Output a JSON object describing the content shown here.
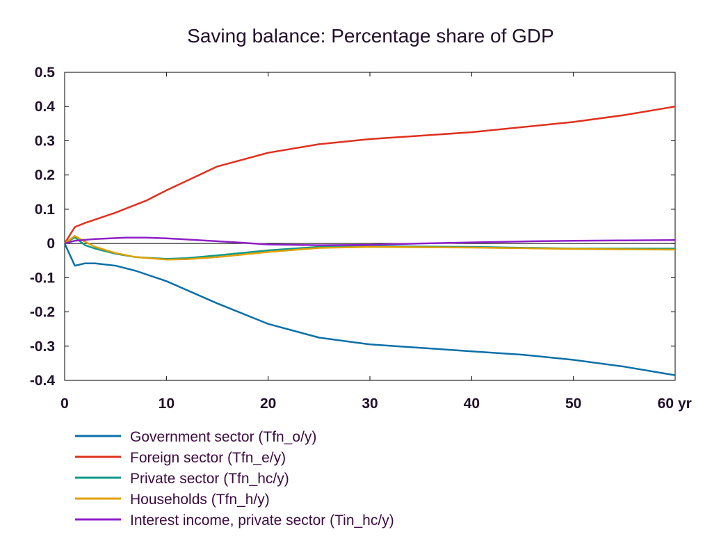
{
  "chart_data": {
    "type": "line",
    "title": "Saving balance: Percentage share of GDP",
    "x_unit": "yr",
    "xlim": [
      0,
      60
    ],
    "ylim": [
      -0.4,
      0.5
    ],
    "x_ticks": [
      "0",
      "10",
      "20",
      "30",
      "40",
      "50",
      "60"
    ],
    "y_ticks": [
      "0.5",
      "0.4",
      "0.3",
      "0.2",
      "0.1",
      "0",
      "-0.1",
      "-0.2",
      "-0.3",
      "-0.4"
    ],
    "zero_line": true,
    "legend_position": "bottom",
    "series": [
      {
        "name": "Government sector (Tfn_o/y)",
        "color": "#0a6fa8",
        "points": [
          [
            0,
            0
          ],
          [
            1,
            -0.065
          ],
          [
            2,
            -0.058
          ],
          [
            3,
            -0.058
          ],
          [
            5,
            -0.065
          ],
          [
            7,
            -0.08
          ],
          [
            10,
            -0.11
          ],
          [
            15,
            -0.175
          ],
          [
            20,
            -0.235
          ],
          [
            25,
            -0.275
          ],
          [
            30,
            -0.295
          ],
          [
            35,
            -0.305
          ],
          [
            40,
            -0.315
          ],
          [
            45,
            -0.325
          ],
          [
            50,
            -0.34
          ],
          [
            55,
            -0.36
          ],
          [
            60,
            -0.385
          ]
        ]
      },
      {
        "name": "Foreign sector (Tfn_e/y)",
        "color": "#e0301e",
        "points": [
          [
            0,
            0
          ],
          [
            1,
            0.048
          ],
          [
            2,
            0.06
          ],
          [
            5,
            0.09
          ],
          [
            8,
            0.125
          ],
          [
            10,
            0.155
          ],
          [
            15,
            0.225
          ],
          [
            20,
            0.265
          ],
          [
            25,
            0.29
          ],
          [
            30,
            0.305
          ],
          [
            35,
            0.315
          ],
          [
            40,
            0.325
          ],
          [
            45,
            0.34
          ],
          [
            50,
            0.355
          ],
          [
            55,
            0.375
          ],
          [
            60,
            0.4
          ]
        ]
      },
      {
        "name": "Private sector (Tfn_hc/y)",
        "color": "#11998a",
        "points": [
          [
            0,
            0
          ],
          [
            1,
            0.018
          ],
          [
            2,
            -0.005
          ],
          [
            3,
            -0.015
          ],
          [
            5,
            -0.03
          ],
          [
            7,
            -0.04
          ],
          [
            10,
            -0.045
          ],
          [
            12,
            -0.043
          ],
          [
            15,
            -0.035
          ],
          [
            20,
            -0.02
          ],
          [
            25,
            -0.01
          ],
          [
            30,
            -0.008
          ],
          [
            40,
            -0.01
          ],
          [
            50,
            -0.015
          ],
          [
            60,
            -0.015
          ]
        ]
      },
      {
        "name": "Households (Tfn_h/y)",
        "color": "#e0a000",
        "points": [
          [
            0,
            0
          ],
          [
            1,
            0.022
          ],
          [
            2,
            0.005
          ],
          [
            3,
            -0.01
          ],
          [
            5,
            -0.028
          ],
          [
            7,
            -0.04
          ],
          [
            10,
            -0.047
          ],
          [
            12,
            -0.046
          ],
          [
            15,
            -0.04
          ],
          [
            20,
            -0.025
          ],
          [
            25,
            -0.013
          ],
          [
            30,
            -0.01
          ],
          [
            40,
            -0.012
          ],
          [
            50,
            -0.016
          ],
          [
            60,
            -0.018
          ]
        ]
      },
      {
        "name": "Interest income, private sector (Tin_hc/y)",
        "color": "#8f1fc8",
        "points": [
          [
            0,
            0
          ],
          [
            1,
            0.008
          ],
          [
            3,
            0.013
          ],
          [
            6,
            0.017
          ],
          [
            8,
            0.017
          ],
          [
            10,
            0.015
          ],
          [
            13,
            0.01
          ],
          [
            17,
            0.003
          ],
          [
            20,
            -0.003
          ],
          [
            25,
            -0.005
          ],
          [
            30,
            -0.004
          ],
          [
            35,
            0
          ],
          [
            40,
            0.003
          ],
          [
            45,
            0.006
          ],
          [
            50,
            0.008
          ],
          [
            55,
            0.009
          ],
          [
            60,
            0.01
          ]
        ]
      }
    ]
  }
}
